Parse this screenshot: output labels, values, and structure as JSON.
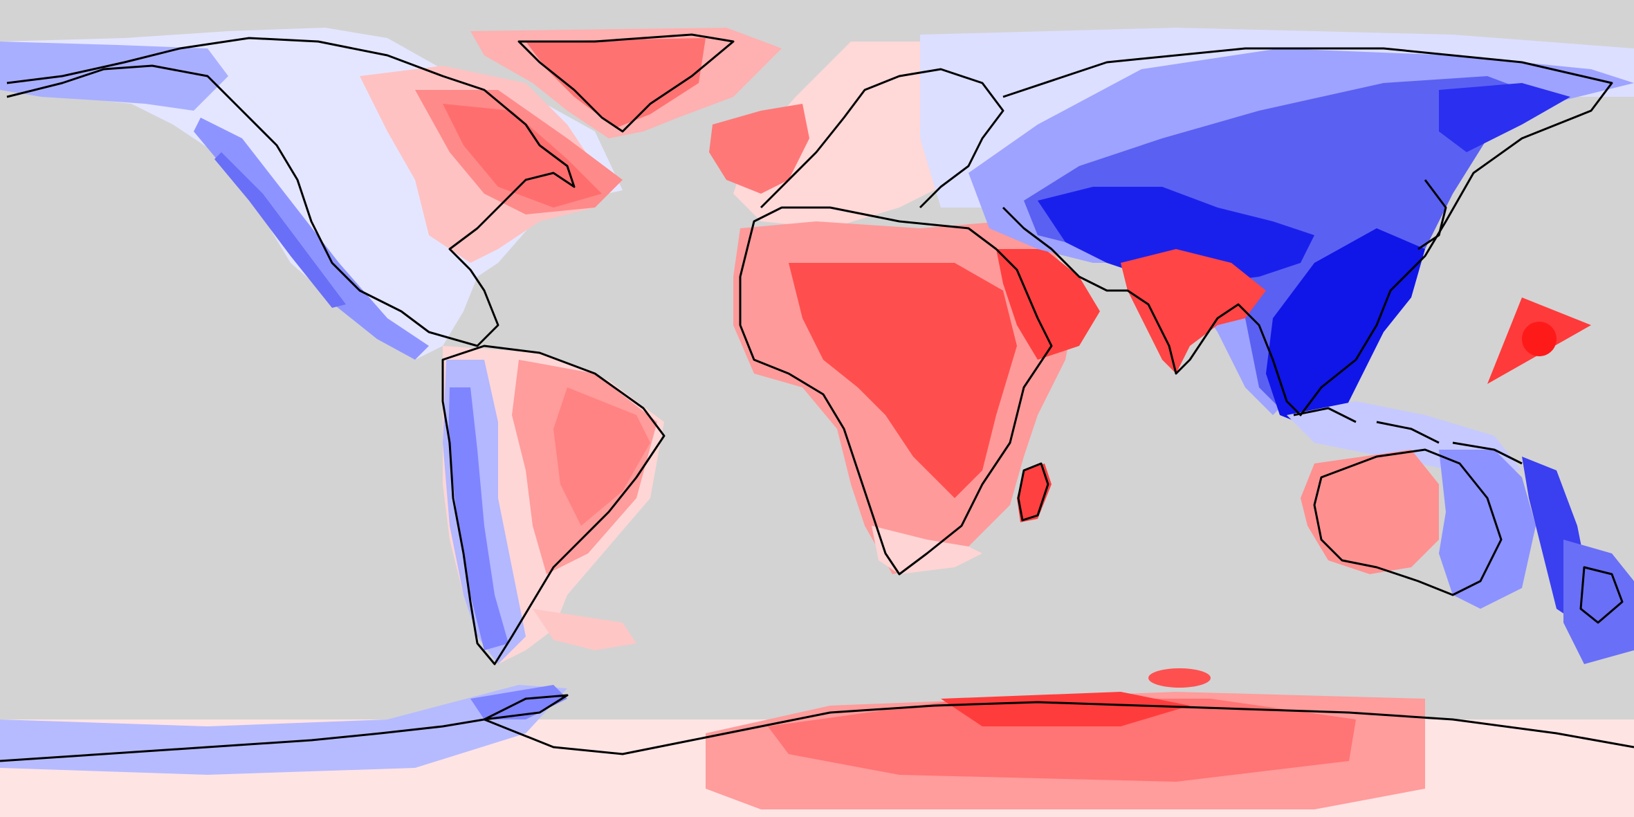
{
  "map": {
    "projection": "equirectangular",
    "extent": {
      "lon": [
        -180,
        180
      ],
      "lat": [
        -90,
        90
      ]
    },
    "colors": {
      "background": "#d3d3d3",
      "coastline": "#000000",
      "positive_strong": "#ff1f1f",
      "positive_mid": "#ff5555",
      "positive_light": "#ff9a9a",
      "positive_pale": "#ffe2e2",
      "neutral": "#f2f2ff",
      "negative_pale": "#dfe2ff",
      "negative_light": "#a9afff",
      "negative_mid": "#6a6ff7",
      "negative_strong": "#0a10e6"
    },
    "text": []
  }
}
